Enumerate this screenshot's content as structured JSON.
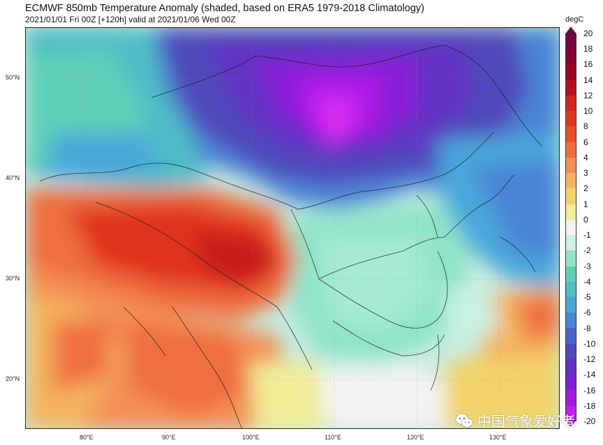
{
  "header": {
    "title": "ECMWF 850mb Temperature Anomaly (shaded, based on ERA5 1979-2018 Climatology)",
    "subtitle": "2021/01/01 Fri 00Z [+120h] valid at 2021/01/06 Wed 00Z"
  },
  "map": {
    "lat_labels": [
      "50°N",
      "40°N",
      "30°N",
      "20°N"
    ],
    "lon_labels": [
      "80°E",
      "90°E",
      "100°E",
      "110°E",
      "120°E",
      "130°E"
    ]
  },
  "colorbar": {
    "units": "degC",
    "ticks": [
      "20",
      "18",
      "16",
      "14",
      "12",
      "10",
      "8",
      "6",
      "4",
      "3",
      "2",
      "1",
      "0",
      "-1",
      "-2",
      "-3",
      "-4",
      "-5",
      "-6",
      "-8",
      "-10",
      "-12",
      "-14",
      "-16",
      "-18",
      "-20"
    ],
    "colors": [
      "#7a0040",
      "#8c0032",
      "#a00025",
      "#b80f1e",
      "#d2231c",
      "#e0361e",
      "#e8502a",
      "#ef6f3f",
      "#f39156",
      "#f4b45e",
      "#f2d36a",
      "#f1ed97",
      "#f2f2f2",
      "#c9f1e3",
      "#8fe4c8",
      "#5fd0b7",
      "#4fbcc6",
      "#4aa7da",
      "#4a84d4",
      "#4a64c9",
      "#5048bb",
      "#6230c4",
      "#7f1fd2",
      "#a31ae0",
      "#c21ff2",
      "#7a0040"
    ]
  },
  "watermark": {
    "text": "中国气象爱好者",
    "icon": "wechat-icon"
  }
}
